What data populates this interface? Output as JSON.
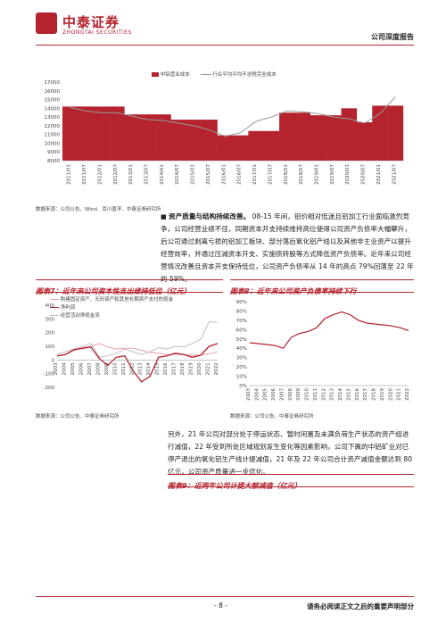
{
  "header": {
    "logo_cn": "中泰证券",
    "logo_en": "ZHONGTAI SECURITIES",
    "report_type": "公司深度报告"
  },
  "chart_top": {
    "legend": [
      "中铝营业成本",
      "行业平均平均不含税完全成本"
    ],
    "source": "数据来源：公司公告、Wind、百川盈孚、中泰证券研究所",
    "chart_data": {
      "type": "bar",
      "y_ticks": [
        "17000",
        "16000",
        "15000",
        "14000",
        "13000",
        "12000",
        "11000",
        "10000",
        "9000",
        "8000"
      ],
      "ylim": [
        8000,
        17000
      ],
      "x_ticks": [
        "2011/01",
        "2011/07",
        "2012/01",
        "2012/07",
        "2013/01",
        "2013/07",
        "2014/01",
        "2014/07",
        "2015/01",
        "2015/07",
        "2016/01",
        "2016/07",
        "2017/01",
        "2017/07",
        "2018/01",
        "2018/07",
        "2019/01",
        "2019/07",
        "2020/01",
        "2020/07",
        "2021/01",
        "2021/07"
      ],
      "series": [
        {
          "name": "中铝营业成本",
          "values": [
            14200,
            14200,
            14200,
            14200,
            13300,
            13300,
            13300,
            12700,
            12700,
            12700,
            10900,
            10900,
            11400,
            11400,
            13500,
            13500,
            13200,
            13200,
            14000,
            12400,
            14300,
            14300
          ]
        },
        {
          "name": "行业平均平均不含税完全成本",
          "values": [
            14100,
            13700,
            13500,
            13500,
            13100,
            12700,
            12600,
            12300,
            12000,
            11500,
            10800,
            11200,
            12500,
            13000,
            13700,
            13600,
            13400,
            13000,
            12800,
            12300,
            13400,
            15300
          ]
        }
      ]
    }
  },
  "section": {
    "bullet": "■",
    "heading": "资产质量与结构持续改善。",
    "paragraph": "08-15 年间，铝价相对低迷且铝加工行业面临激烈竞争，公司经营业绩不佳，同期资本开支持续维持高位使得公司资产负债率大幅攀升，后公司通过剥离亏损的铝加工板块、部分落后氧化铝产线以及其他非主业资产以提升经营效率，并通过压减资本开支、实施债转股等方式降低资产负债率。近年来公司经营情况改善且资本开支保持低位，公司资产负债率从 14 年的高点 79%回落至 22 年的 59%。"
  },
  "fig7": {
    "title": "图表7：近年来公司资本性支出维持低位（亿元）",
    "legend": [
      "购建固定资产、无形资产和其他长期资产支付的现金",
      "净利润",
      "经营活动净现金流"
    ],
    "source": "数据来源：公司公告、中泰证券研究所",
    "chart_data": {
      "type": "bar",
      "y_ticks": [
        "400",
        "300",
        "200",
        "100",
        "0",
        "-100",
        "-200"
      ],
      "ylim": [
        -200,
        400
      ],
      "categories": [
        "2003",
        "2004",
        "2005",
        "2006",
        "2007",
        "2008",
        "2009",
        "2010",
        "2011",
        "2012",
        "2013",
        "2014",
        "2015",
        "2016",
        "2017",
        "2018",
        "2019",
        "2020",
        "2021",
        "2022"
      ],
      "series": [
        {
          "name": "购建固定资产、无形资产和其他长期资产支付的现金",
          "values": [
            30,
            40,
            70,
            90,
            100,
            120,
            95,
            80,
            85,
            85,
            70,
            55,
            50,
            40,
            40,
            40,
            35,
            35,
            45,
            60
          ]
        },
        {
          "name": "净利润",
          "values": [
            30,
            40,
            75,
            85,
            95,
            10,
            -40,
            20,
            30,
            -80,
            -160,
            -120,
            20,
            30,
            50,
            40,
            20,
            35,
            100,
            120
          ]
        },
        {
          "name": "经营活动净现金流",
          "values": [
            45,
            60,
            80,
            100,
            120,
            20,
            30,
            50,
            80,
            60,
            40,
            60,
            90,
            80,
            100,
            95,
            120,
            150,
            280,
            275
          ]
        }
      ]
    }
  },
  "fig8": {
    "title": "图表8：近年来公司资产负债率持续下行",
    "source": "数据来源：公司公告、中泰证券研究所",
    "chart_data": {
      "type": "line",
      "y_ticks": [
        "90%",
        "80%",
        "70%",
        "60%",
        "50%",
        "40%",
        "30%",
        "20%",
        "10%",
        "0%"
      ],
      "ylim": [
        0,
        90
      ],
      "categories": [
        "2003",
        "2004",
        "2005",
        "2006",
        "2007",
        "2008",
        "2009",
        "2010",
        "2011",
        "2012",
        "2013",
        "2014",
        "2015",
        "2016",
        "2017",
        "2018",
        "2019",
        "2020",
        "2021",
        "2022"
      ],
      "series": [
        {
          "name": "",
          "values": [
            46,
            45,
            44,
            43,
            40,
            52,
            56,
            58,
            62,
            72,
            76,
            79,
            76,
            70,
            67,
            66,
            65,
            64,
            62,
            59
          ]
        }
      ]
    }
  },
  "para2": "另外，21 年公司对部分处于停运状态、暂时闲置及未满负荷生产状态的资产组进行减值，22 年受到所处区域规划发生变化等因素影响，公司下属的中铝矿业对已停产退出的氧化铝生产线计提减值，21 年及 22 年公司合计资产减值金额达到 80 亿元，公司资产质量进一步优化。",
  "fig9": {
    "title": "图表9：近两年公司计提大额减值（亿元）"
  },
  "footer": {
    "page": "- 8 -",
    "disclaimer": "请务必阅读正文之后的重要声明部分"
  },
  "colors": {
    "brand": "#b4232e",
    "gray_line": "#9a9a9a",
    "light_pink": "#e8a0a5"
  }
}
